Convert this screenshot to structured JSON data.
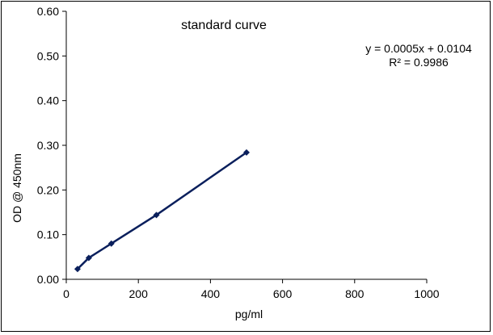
{
  "chart_data": {
    "type": "scatter",
    "title": "standard curve",
    "xlabel": "pg/ml",
    "ylabel": "OD @ 450nm",
    "xlim": [
      0,
      1000
    ],
    "ylim": [
      0,
      0.6
    ],
    "x_ticks": [
      "0",
      "200",
      "400",
      "600",
      "800",
      "1000"
    ],
    "y_ticks": [
      "0.00",
      "0.10",
      "0.20",
      "0.30",
      "0.40",
      "0.50",
      "0.60"
    ],
    "grid": false,
    "legend": "none",
    "series": [
      {
        "color": "#0a1f5c",
        "marker": "diamond",
        "line": true,
        "points": [
          {
            "x": 31.25,
            "y": 0.023
          },
          {
            "x": 62.5,
            "y": 0.048
          },
          {
            "x": 125,
            "y": 0.08
          },
          {
            "x": 250,
            "y": 0.144
          },
          {
            "x": 500,
            "y": 0.284
          }
        ]
      }
    ],
    "annotations": {
      "equation": "y = 0.0005x + 0.0104",
      "r_squared": "R² = 0.9986"
    }
  }
}
